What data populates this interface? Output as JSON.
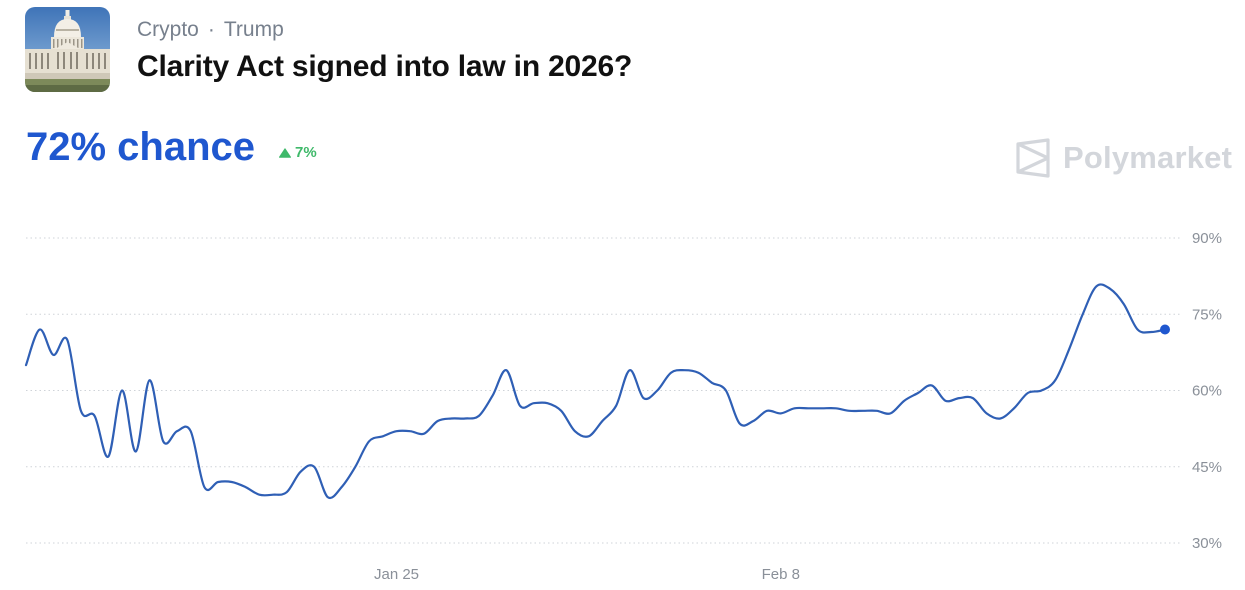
{
  "market": {
    "category": "Crypto",
    "separator": "·",
    "subcategory": "Trump",
    "title": "Clarity Act signed into law in 2026?",
    "thumbnail_icon": "capitol-building-icon"
  },
  "probability": {
    "chance_text": "72% chance",
    "change_text": "7%",
    "change_direction": "up",
    "color": "#1f57cf",
    "change_color": "#3fb96a"
  },
  "brand": {
    "name": "Polymarket",
    "icon": "polymarket-logo-icon",
    "color": "#d3d6db"
  },
  "chart_data": {
    "type": "line",
    "ylim": [
      30,
      90
    ],
    "yticks": [
      30,
      45,
      60,
      75,
      90
    ],
    "ytick_labels": [
      "30%",
      "45%",
      "60%",
      "75%",
      "90%"
    ],
    "xticks": [
      "Jan 25",
      "Feb 8"
    ],
    "grid": true,
    "line_color": "#2f5fb5",
    "end_marker_color": "#1f57cf",
    "series": [
      {
        "values": [
          65,
          72,
          67,
          70,
          56,
          55,
          47,
          60,
          48,
          62,
          50,
          52,
          52,
          41,
          42,
          42,
          41,
          39.5,
          39.5,
          40,
          44,
          45,
          39,
          41,
          45,
          50,
          51,
          52,
          52,
          51.5,
          54,
          54.5,
          54.5,
          55,
          59,
          64,
          57,
          57.5,
          57.5,
          56,
          52,
          51,
          54,
          57,
          64,
          58.5,
          60,
          63.5,
          64,
          63.5,
          61.5,
          60,
          53.5,
          54,
          56,
          55.5,
          56.5,
          56.5,
          56.5,
          56.5,
          56,
          56,
          56,
          55.5,
          58,
          59.5,
          61,
          58,
          58.5,
          58.5,
          55.5,
          54.5,
          56.5,
          59.5,
          60,
          62,
          68,
          75,
          80.5,
          80,
          77,
          72,
          71.5,
          72
        ]
      }
    ]
  }
}
